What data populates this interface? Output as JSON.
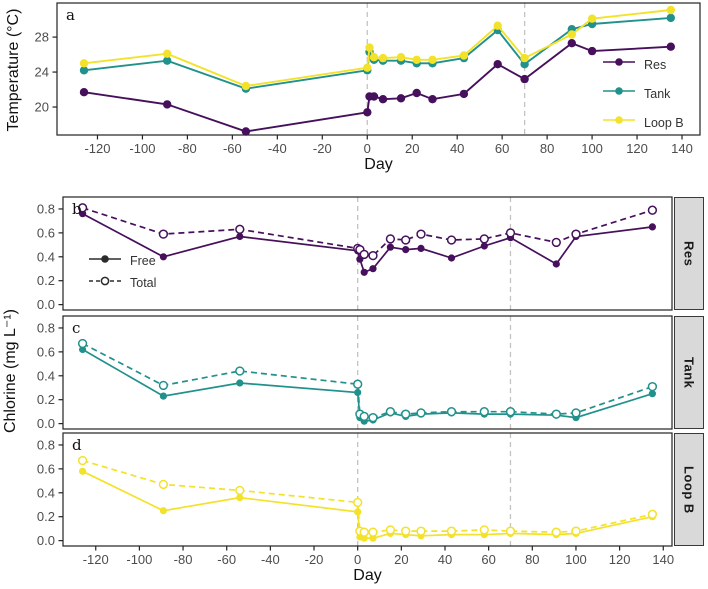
{
  "labels": {
    "chlorine_ylabel": "Chlorine (mg L⁻¹)"
  },
  "colors": {
    "res": "#46105c",
    "tank": "#21918c",
    "loop_b": "#f3e22a",
    "legend_bw": "#2b2b2b",
    "vline_gray": "#c3c3c3",
    "strip_bg": "#d9d9d9",
    "tick_text": "#4d4d4d"
  },
  "legend_b": {
    "items": [
      {
        "label": "Free",
        "color": "#2b2b2b",
        "line": "solid",
        "marker": "filled"
      },
      {
        "label": "Total",
        "color": "#2b2b2b",
        "line": "dashed",
        "marker": "open"
      }
    ]
  },
  "x_axis": {
    "ticks": [
      -120,
      -100,
      -80,
      -60,
      -40,
      -20,
      0,
      20,
      40,
      60,
      80,
      100,
      120,
      140
    ],
    "label": "Day"
  },
  "chart_data": [
    {
      "id": "a",
      "type": "line",
      "letter": "a",
      "ylabel": "Temperature (°C)",
      "xlabel": "Day",
      "xlim": [
        -138,
        148
      ],
      "ylim": [
        16.8,
        31.9
      ],
      "yticks": [
        20,
        24,
        28
      ],
      "ydecimals": 0,
      "xticks_shown": true,
      "vlines": [
        0,
        70
      ],
      "grid": false,
      "legend_position": "right-middle",
      "x": [
        -126,
        -89,
        -54,
        0,
        1,
        3,
        7,
        15,
        22,
        29,
        43,
        58,
        70,
        91,
        100,
        135
      ],
      "series": [
        {
          "name": "Res",
          "color": "#46105c",
          "line": "solid",
          "marker": "filled",
          "values": [
            21.7,
            20.3,
            17.2,
            19.4,
            21.2,
            21.2,
            20.9,
            21.0,
            21.6,
            20.9,
            21.5,
            24.9,
            23.2,
            27.3,
            26.4,
            26.9
          ]
        },
        {
          "name": "Tank",
          "color": "#21918c",
          "line": "solid",
          "marker": "filled",
          "values": [
            24.2,
            25.3,
            22.1,
            24.2,
            26.3,
            25.4,
            25.3,
            25.3,
            25.0,
            25.0,
            25.6,
            28.8,
            24.9,
            28.9,
            29.5,
            30.2
          ]
        },
        {
          "name": "Loop B",
          "color": "#f3e22a",
          "line": "solid",
          "marker": "filled",
          "values": [
            25.0,
            26.1,
            22.4,
            24.5,
            26.8,
            25.7,
            25.6,
            25.7,
            25.4,
            25.4,
            25.9,
            29.3,
            25.6,
            28.3,
            30.1,
            31.1
          ]
        }
      ]
    },
    {
      "id": "b",
      "type": "line",
      "letter": "b",
      "facet": "Res",
      "ylabel": "Chlorine (mg L⁻¹)",
      "xlabel": "",
      "xlim": [
        -135,
        144
      ],
      "ylim": [
        -0.045,
        0.9
      ],
      "yticks": [
        0.0,
        0.2,
        0.4,
        0.6,
        0.8
      ],
      "ydecimals": 1,
      "xticks_shown": false,
      "vlines": [
        0,
        70
      ],
      "grid": false,
      "x": [
        -126,
        -89,
        -54,
        0,
        1,
        3,
        7,
        15,
        22,
        29,
        43,
        58,
        70,
        91,
        100,
        135
      ],
      "series": [
        {
          "name": "Free",
          "color": "#46105c",
          "line": "solid",
          "marker": "filled",
          "values": [
            0.76,
            0.4,
            0.57,
            0.45,
            0.38,
            0.27,
            0.3,
            0.48,
            0.46,
            0.47,
            0.39,
            0.49,
            0.56,
            0.34,
            0.57,
            0.65
          ]
        },
        {
          "name": "Total",
          "color": "#46105c",
          "line": "dashed",
          "marker": "open",
          "values": [
            0.81,
            0.59,
            0.63,
            0.47,
            0.46,
            0.42,
            0.41,
            0.55,
            0.54,
            0.59,
            0.54,
            0.55,
            0.6,
            0.52,
            0.59,
            0.79
          ]
        }
      ]
    },
    {
      "id": "c",
      "type": "line",
      "letter": "c",
      "facet": "Tank",
      "ylabel": "Chlorine (mg L⁻¹)",
      "xlabel": "",
      "xlim": [
        -135,
        144
      ],
      "ylim": [
        -0.045,
        0.9
      ],
      "yticks": [
        0.0,
        0.2,
        0.4,
        0.6,
        0.8
      ],
      "ydecimals": 1,
      "xticks_shown": false,
      "vlines": [
        0,
        70
      ],
      "grid": false,
      "x": [
        -126,
        -89,
        -54,
        0,
        1,
        3,
        7,
        15,
        22,
        29,
        43,
        58,
        70,
        91,
        100,
        135
      ],
      "series": [
        {
          "name": "Free",
          "color": "#21918c",
          "line": "solid",
          "marker": "filled",
          "values": [
            0.62,
            0.23,
            0.34,
            0.26,
            0.05,
            0.02,
            0.03,
            0.09,
            0.06,
            0.08,
            0.09,
            0.08,
            0.08,
            0.07,
            0.05,
            0.25
          ]
        },
        {
          "name": "Total",
          "color": "#21918c",
          "line": "dashed",
          "marker": "open",
          "values": [
            0.67,
            0.32,
            0.44,
            0.33,
            0.08,
            0.06,
            0.05,
            0.1,
            0.08,
            0.09,
            0.1,
            0.1,
            0.1,
            0.08,
            0.09,
            0.31
          ]
        }
      ]
    },
    {
      "id": "d",
      "type": "line",
      "letter": "d",
      "facet": "Loop B",
      "ylabel": "Chlorine (mg L⁻¹)",
      "xlabel": "Day",
      "xlim": [
        -135,
        144
      ],
      "ylim": [
        -0.045,
        0.9
      ],
      "yticks": [
        0.0,
        0.2,
        0.4,
        0.6,
        0.8
      ],
      "ydecimals": 1,
      "xticks_shown": true,
      "vlines": [
        0,
        70
      ],
      "grid": false,
      "x": [
        -126,
        -89,
        -54,
        0,
        1,
        3,
        7,
        15,
        22,
        29,
        43,
        58,
        70,
        91,
        100,
        135
      ],
      "series": [
        {
          "name": "Free",
          "color": "#f3e22a",
          "line": "solid",
          "marker": "filled",
          "values": [
            0.58,
            0.25,
            0.36,
            0.24,
            0.03,
            0.02,
            0.02,
            0.06,
            0.05,
            0.04,
            0.05,
            0.05,
            0.06,
            0.05,
            0.06,
            0.2
          ]
        },
        {
          "name": "Total",
          "color": "#f3e22a",
          "line": "dashed",
          "marker": "open",
          "values": [
            0.67,
            0.47,
            0.42,
            0.32,
            0.08,
            0.07,
            0.07,
            0.09,
            0.08,
            0.08,
            0.08,
            0.09,
            0.08,
            0.07,
            0.08,
            0.22
          ]
        }
      ]
    }
  ]
}
